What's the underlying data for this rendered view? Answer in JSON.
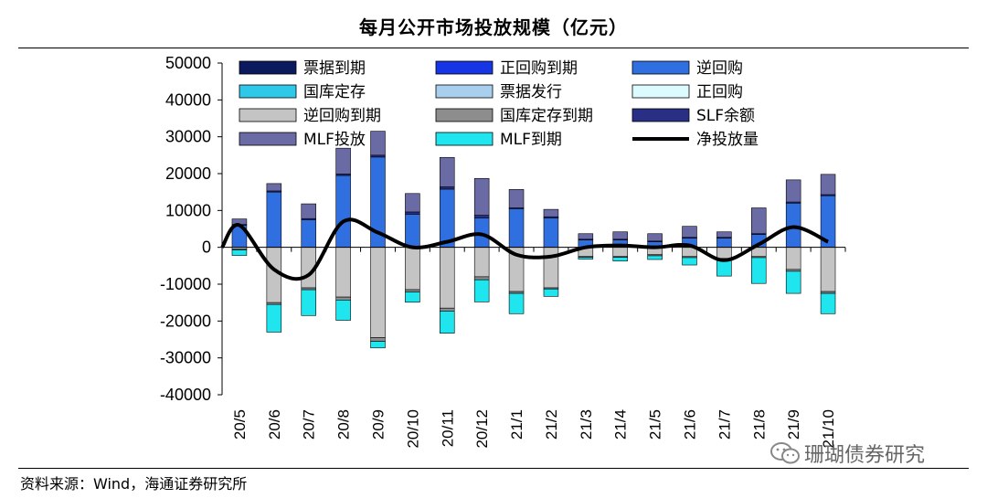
{
  "header": {
    "title": "每月公开市场投放规模（亿元）"
  },
  "footer": {
    "source": "资料来源：Wind，海通证券研究所"
  },
  "watermark": {
    "text": "珊瑚债券研究"
  },
  "colors": {
    "票据到期": "#0b1a5e",
    "正回购到期": "#1636e6",
    "逆回购": "#2f6fe0",
    "国库定存": "#2ec8e8",
    "票据发行": "#a9cfee",
    "正回购": "#dcfbff",
    "逆回购到期": "#c4c4c4",
    "国库定存到期": "#8d8d8d",
    "SLF余额": "#2a2f86",
    "MLF投放": "#6a6aa5",
    "MLF到期": "#1ee5ee",
    "净投放量": "#000000"
  },
  "chart_data": {
    "type": "bar",
    "title": "每月公开市场投放规模（亿元）",
    "ylim": [
      -40000,
      50000
    ],
    "yticks": [
      -40000,
      -30000,
      -20000,
      -10000,
      0,
      10000,
      20000,
      30000,
      40000,
      50000
    ],
    "categories": [
      "20/5",
      "20/6",
      "20/7",
      "20/8",
      "20/9",
      "20/10",
      "20/11",
      "20/12",
      "21/1",
      "21/2",
      "21/3",
      "21/4",
      "21/5",
      "21/6",
      "21/7",
      "21/8",
      "21/9",
      "21/10"
    ],
    "legend": [
      {
        "name": "票据到期",
        "kind": "bar"
      },
      {
        "name": "正回购到期",
        "kind": "bar"
      },
      {
        "name": "逆回购",
        "kind": "bar"
      },
      {
        "name": "国库定存",
        "kind": "bar"
      },
      {
        "name": "票据发行",
        "kind": "bar"
      },
      {
        "name": "正回购",
        "kind": "bar"
      },
      {
        "name": "逆回购到期",
        "kind": "bar"
      },
      {
        "name": "国库定存到期",
        "kind": "bar"
      },
      {
        "name": "SLF余额",
        "kind": "bar"
      },
      {
        "name": "MLF投放",
        "kind": "bar"
      },
      {
        "name": "MLF到期",
        "kind": "bar"
      },
      {
        "name": "净投放量",
        "kind": "line"
      }
    ],
    "series": [
      {
        "name": "逆回购",
        "stack": "pos",
        "values": [
          6000,
          15000,
          7500,
          19500,
          24500,
          9000,
          15800,
          8000,
          10500,
          8000,
          2000,
          2000,
          1500,
          2500,
          2500,
          3500,
          12000,
          14000
        ]
      },
      {
        "name": "SLF余额",
        "stack": "pos",
        "values": [
          200,
          300,
          300,
          400,
          500,
          600,
          600,
          700,
          200,
          300,
          200,
          200,
          200,
          200,
          200,
          200,
          300,
          300
        ]
      },
      {
        "name": "MLF投放",
        "stack": "pos",
        "values": [
          1500,
          2000,
          4000,
          7000,
          6500,
          5000,
          8000,
          10000,
          5000,
          2000,
          1500,
          2000,
          2000,
          3000,
          1500,
          7000,
          6000,
          5500
        ]
      },
      {
        "name": "逆回购到期",
        "stack": "neg",
        "values": [
          -500,
          -15000,
          -11000,
          -13500,
          -24500,
          -11500,
          -16500,
          -8000,
          -12000,
          -11000,
          -2500,
          -2500,
          -2000,
          -2500,
          -3000,
          -2500,
          -6000,
          -12000
        ]
      },
      {
        "name": "国库定存到期",
        "stack": "neg",
        "values": [
          -200,
          -500,
          -500,
          -800,
          -1000,
          -600,
          -800,
          -800,
          -500,
          -300,
          -200,
          -200,
          -300,
          -300,
          -300,
          -300,
          -500,
          -500
        ]
      },
      {
        "name": "MLF到期",
        "stack": "neg",
        "values": [
          -1500,
          -7500,
          -7000,
          -5500,
          -1800,
          -2800,
          -6000,
          -6000,
          -5500,
          -2000,
          -500,
          -1000,
          -1000,
          -2000,
          -4500,
          -7000,
          -6000,
          -5500
        ]
      },
      {
        "name": "净投放量",
        "type": "line",
        "values": [
          6000,
          -6000,
          -7500,
          7000,
          4000,
          0,
          1500,
          3500,
          -2000,
          -2500,
          0,
          500,
          0,
          500,
          -3500,
          800,
          5500,
          1500
        ]
      }
    ]
  }
}
